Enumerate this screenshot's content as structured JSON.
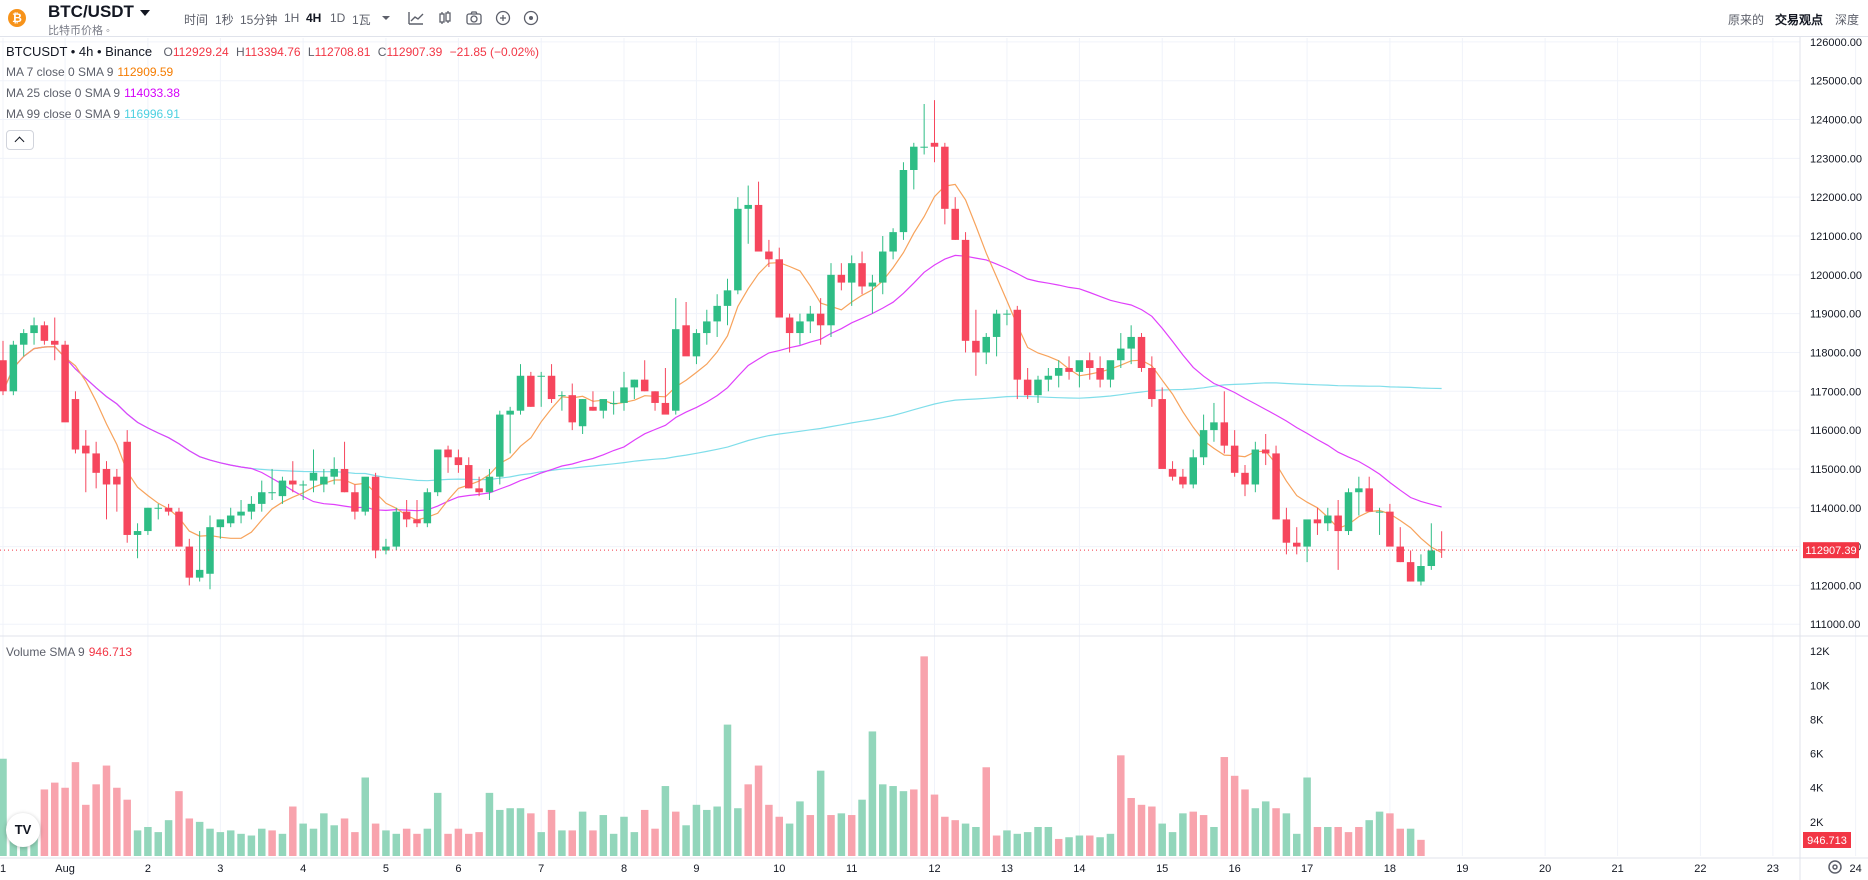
{
  "header": {
    "coin_icon": "bitcoin-icon",
    "symbol": "BTC/USDT",
    "subtitle": "比特币价格 ◦",
    "timeframes": [
      "时间",
      "1秒",
      "15分钟",
      "1H",
      "4H",
      "1D",
      "1瓦"
    ],
    "active_timeframe": "4H",
    "tool_icons": [
      "chevron-down-icon",
      "indicator-chart-icon",
      "candle-type-icon",
      "camera-icon",
      "add-circle-icon",
      "replay-icon"
    ],
    "right_tabs": [
      "原来的",
      "交易观点",
      "深度"
    ]
  },
  "legend": {
    "symbol": "BTCUSDT • 4h • Binance",
    "o_label": "O",
    "o": "112929.24",
    "h_label": "H",
    "h": "113394.76",
    "l_label": "L",
    "l": "112708.81",
    "c_label": "C",
    "c": "112907.39",
    "change": "−21.85 (−0.02%)",
    "ma7_label": "MA 7 close 0 SMA 9",
    "ma7_value": "112909.59",
    "ma25_label": "MA 25 close 0 SMA 9",
    "ma25_value": "114033.38",
    "ma99_label": "MA 99 close 0 SMA 9",
    "ma99_value": "116996.91",
    "volume_label": "Volume SMA 9",
    "volume_value": "946.713"
  },
  "colors": {
    "up": "#26a69a",
    "down": "#f23645",
    "candle_up": "#2ebd85",
    "candle_down": "#f6465d",
    "ma7": "#f7a35c",
    "ma25": "#e040fb",
    "ma99": "#80deea"
  },
  "chart_data": [
    {
      "type": "candlestick",
      "title": "BTCUSDT • 4h • Binance",
      "x_tick_labels": [
        "1",
        "Aug",
        "2",
        "3",
        "4",
        "5",
        "6",
        "7",
        "8",
        "9",
        "10",
        "11",
        "12",
        "13",
        "14",
        "15",
        "16",
        "17",
        "18",
        "19",
        "20",
        "21",
        "22",
        "23",
        "24"
      ],
      "y_tick_labels": [
        "111000.00",
        "112000.00",
        "113000.00",
        "114000.00",
        "115000.00",
        "116000.00",
        "117000.00",
        "118000.00",
        "119000.00",
        "120000.00",
        "121000.00",
        "122000.00",
        "123000.00",
        "124000.00",
        "125000.00",
        "126000.00"
      ],
      "ylim": [
        110800,
        126100
      ],
      "last_price_label": "112907.39",
      "last_price": 112907.39,
      "grid": true,
      "candles_ohlc": [
        [
          117800,
          118300,
          116900,
          117000
        ],
        [
          117000,
          118300,
          116900,
          118200
        ],
        [
          118200,
          118600,
          117900,
          118500
        ],
        [
          118500,
          118900,
          118200,
          118700
        ],
        [
          118700,
          118800,
          118200,
          118300
        ],
        [
          118300,
          118900,
          117800,
          118200
        ],
        [
          118200,
          118300,
          116800,
          116200
        ],
        [
          116800,
          117000,
          115400,
          115500
        ],
        [
          115600,
          116000,
          114400,
          115400
        ],
        [
          115400,
          115700,
          114500,
          114900
        ],
        [
          115000,
          115200,
          113700,
          114600
        ],
        [
          114800,
          115000,
          113900,
          114600
        ],
        [
          115700,
          116000,
          113100,
          113300
        ],
        [
          113300,
          113600,
          112700,
          113400
        ],
        [
          113400,
          114000,
          113300,
          114000
        ],
        [
          114000,
          114100,
          113700,
          114000
        ],
        [
          114000,
          114100,
          113800,
          113900
        ],
        [
          113900,
          114000,
          113000,
          113000
        ],
        [
          113000,
          113200,
          112000,
          112200
        ],
        [
          112200,
          113400,
          112100,
          112400
        ],
        [
          112300,
          113800,
          111900,
          113500
        ],
        [
          113500,
          113700,
          113200,
          113700
        ],
        [
          113600,
          114000,
          113500,
          113800
        ],
        [
          113800,
          114200,
          113600,
          113900
        ],
        [
          113900,
          114300,
          113700,
          114100
        ],
        [
          114100,
          114700,
          113900,
          114400
        ],
        [
          114400,
          115000,
          114200,
          114400
        ],
        [
          114300,
          114800,
          114100,
          114700
        ],
        [
          114700,
          115200,
          114400,
          114600
        ],
        [
          114600,
          114700,
          114200,
          114600
        ],
        [
          114700,
          115500,
          114400,
          114900
        ],
        [
          114600,
          115000,
          114400,
          114800
        ],
        [
          114800,
          115300,
          114600,
          115000
        ],
        [
          115000,
          115700,
          114400,
          114400
        ],
        [
          114400,
          114600,
          113700,
          113900
        ],
        [
          113900,
          114700,
          113800,
          114800
        ],
        [
          114800,
          114900,
          112700,
          112900
        ],
        [
          112900,
          113200,
          112800,
          113000
        ],
        [
          113000,
          114000,
          112900,
          113900
        ],
        [
          113900,
          114200,
          113500,
          113700
        ],
        [
          113700,
          114200,
          113500,
          113600
        ],
        [
          113600,
          114500,
          113500,
          114400
        ],
        [
          114400,
          115500,
          114300,
          115500
        ],
        [
          115500,
          115600,
          114900,
          115300
        ],
        [
          115300,
          115500,
          114900,
          115100
        ],
        [
          115100,
          115300,
          114500,
          114500
        ],
        [
          114500,
          114800,
          114300,
          114400
        ],
        [
          114400,
          115000,
          114200,
          114800
        ],
        [
          114800,
          116500,
          114600,
          116400
        ],
        [
          116400,
          116600,
          115400,
          116500
        ],
        [
          116500,
          117700,
          116400,
          117400
        ],
        [
          117400,
          117500,
          116600,
          116600
        ],
        [
          117400,
          117500,
          116600,
          117400
        ],
        [
          117400,
          117700,
          116700,
          116800
        ],
        [
          116900,
          117000,
          116500,
          116900
        ],
        [
          116900,
          117200,
          116000,
          116200
        ],
        [
          116100,
          116800,
          115900,
          116800
        ],
        [
          116600,
          117000,
          116500,
          116500
        ],
        [
          116500,
          116700,
          116300,
          116800
        ],
        [
          116700,
          117000,
          116400,
          116700
        ],
        [
          116700,
          117500,
          116500,
          117100
        ],
        [
          117100,
          117300,
          116800,
          117300
        ],
        [
          117300,
          117800,
          117000,
          117000
        ],
        [
          117000,
          117000,
          116500,
          116700
        ],
        [
          116700,
          117600,
          116500,
          116400
        ],
        [
          116500,
          119400,
          116400,
          118600
        ],
        [
          118700,
          119300,
          118000,
          117900
        ],
        [
          117900,
          118600,
          117700,
          118500
        ],
        [
          118500,
          119100,
          118200,
          118800
        ],
        [
          118800,
          119500,
          118400,
          119200
        ],
        [
          119200,
          119900,
          118700,
          119600
        ],
        [
          119600,
          122000,
          119500,
          121700
        ],
        [
          121700,
          122300,
          120800,
          121800
        ],
        [
          121800,
          122400,
          121000,
          120600
        ],
        [
          120600,
          120900,
          120200,
          120400
        ],
        [
          120400,
          120700,
          119000,
          118900
        ],
        [
          118900,
          119000,
          118000,
          118500
        ],
        [
          118500,
          119000,
          118200,
          118800
        ],
        [
          118800,
          119200,
          118500,
          119000
        ],
        [
          119000,
          119400,
          118200,
          118700
        ],
        [
          118700,
          120300,
          118400,
          120000
        ],
        [
          120000,
          120300,
          119600,
          119800
        ],
        [
          119800,
          120500,
          119200,
          120300
        ],
        [
          120300,
          120600,
          119500,
          119700
        ],
        [
          119700,
          120000,
          119000,
          119800
        ],
        [
          119800,
          121000,
          119500,
          120600
        ],
        [
          120600,
          121200,
          120400,
          121100
        ],
        [
          121100,
          122900,
          120900,
          122700
        ],
        [
          122700,
          123400,
          122200,
          123300
        ],
        [
          123300,
          124400,
          123100,
          123300
        ],
        [
          123400,
          124500,
          122900,
          123300
        ],
        [
          123300,
          123400,
          121300,
          121700
        ],
        [
          121700,
          122000,
          120900,
          120900
        ],
        [
          120900,
          121100,
          118000,
          118300
        ],
        [
          118300,
          119100,
          117400,
          118000
        ],
        [
          118000,
          118500,
          117700,
          118400
        ],
        [
          118400,
          119100,
          117900,
          119000
        ],
        [
          119000,
          119100,
          118700,
          119000
        ],
        [
          119100,
          119200,
          116800,
          117300
        ],
        [
          117300,
          117600,
          116800,
          116900
        ],
        [
          116900,
          117400,
          116700,
          117300
        ],
        [
          117300,
          117600,
          117000,
          117400
        ],
        [
          117400,
          117800,
          117100,
          117600
        ],
        [
          117600,
          117900,
          117300,
          117500
        ],
        [
          117500,
          117700,
          117100,
          117800
        ],
        [
          117800,
          118000,
          117300,
          117600
        ],
        [
          117600,
          117900,
          117100,
          117300
        ],
        [
          117300,
          117700,
          117100,
          117800
        ],
        [
          117800,
          118500,
          117600,
          118100
        ],
        [
          118100,
          118700,
          117700,
          118400
        ],
        [
          118400,
          118500,
          117500,
          117600
        ],
        [
          117600,
          117900,
          116600,
          116800
        ],
        [
          116800,
          117100,
          116000,
          115000
        ],
        [
          115000,
          115200,
          114700,
          114800
        ],
        [
          114800,
          115000,
          114500,
          114600
        ],
        [
          114600,
          115500,
          114500,
          115300
        ],
        [
          115300,
          116400,
          115100,
          116000
        ],
        [
          116000,
          116700,
          115700,
          116200
        ],
        [
          116200,
          117000,
          115400,
          115600
        ],
        [
          115600,
          116000,
          114800,
          114900
        ],
        [
          114900,
          115100,
          114300,
          114600
        ],
        [
          114600,
          115700,
          114400,
          115500
        ],
        [
          115500,
          115900,
          115100,
          115400
        ],
        [
          115400,
          115600,
          113700,
          113700
        ],
        [
          113700,
          114000,
          112800,
          113100
        ],
        [
          113100,
          113500,
          112800,
          113000
        ],
        [
          113000,
          113400,
          112600,
          113700
        ],
        [
          113700,
          114000,
          113300,
          113600
        ],
        [
          113600,
          114000,
          113400,
          113800
        ],
        [
          113800,
          114200,
          112400,
          113400
        ],
        [
          113400,
          114500,
          113300,
          114400
        ],
        [
          114400,
          114800,
          113800,
          114500
        ],
        [
          114500,
          114800,
          113900,
          113900
        ],
        [
          113900,
          114000,
          113300,
          113900
        ],
        [
          113900,
          114100,
          113100,
          113000
        ],
        [
          113000,
          113500,
          112600,
          112600
        ],
        [
          112600,
          112900,
          112100,
          112100
        ],
        [
          112100,
          112800,
          112000,
          112500
        ],
        [
          112500,
          113600,
          112400,
          112900
        ],
        [
          112929.24,
          113394.76,
          112708.81,
          112907.39
        ]
      ]
    },
    {
      "type": "bar",
      "title": "Volume SMA 9",
      "y_tick_labels": [
        "2K",
        "4K",
        "6K",
        "8K",
        "10K",
        "12K"
      ],
      "ylim": [
        0,
        12600
      ],
      "last_value_label": "946.713",
      "volume_values": [
        5700,
        1800,
        1100,
        1300,
        3900,
        4300,
        4000,
        5500,
        3000,
        4200,
        5300,
        4000,
        3300,
        1500,
        1700,
        1400,
        2100,
        3800,
        2200,
        2000,
        1600,
        1400,
        1500,
        1300,
        1200,
        1600,
        1500,
        1300,
        2900,
        1900,
        1600,
        2500,
        1800,
        2200,
        1400,
        4600,
        1900,
        1500,
        1300,
        1600,
        1300,
        1600,
        3700,
        1300,
        1600,
        1300,
        1400,
        3700,
        2700,
        2800,
        2800,
        2500,
        1400,
        2700,
        1500,
        1500,
        2600,
        1500,
        2400,
        1300,
        2300,
        1400,
        2700,
        1600,
        4100,
        2600,
        1800,
        3000,
        2700,
        2900,
        7700,
        2800,
        4200,
        5300,
        3000,
        2300,
        1900,
        3200,
        2400,
        5000,
        2400,
        2500,
        2400,
        3300,
        7300,
        4200,
        4100,
        3800,
        3900,
        11700,
        3600,
        2300,
        2100,
        1900,
        1700,
        5200,
        1200,
        1500,
        1300,
        1400,
        1700,
        1700,
        1000,
        1100,
        1200,
        1200,
        1100,
        1300,
        5900,
        3400,
        3000,
        2900,
        1900,
        1400,
        2500,
        2600,
        2400,
        1700,
        5800,
        4700,
        3900,
        2800,
        3200,
        2800,
        2500,
        1300,
        4600,
        1700,
        1700,
        1700,
        1400,
        1700,
        2100,
        2600,
        2500,
        1600,
        1600,
        946.713
      ],
      "volume_up": [
        true,
        true,
        true,
        true,
        false,
        false,
        false,
        false,
        false,
        false,
        false,
        false,
        false,
        true,
        true,
        true,
        true,
        false,
        false,
        true,
        true,
        true,
        true,
        true,
        true,
        true,
        false,
        true,
        false,
        true,
        true,
        true,
        true,
        false,
        false,
        true,
        false,
        true,
        true,
        false,
        false,
        true,
        true,
        false,
        false,
        false,
        false,
        true,
        true,
        true,
        true,
        false,
        true,
        false,
        true,
        false,
        true,
        false,
        true,
        true,
        true,
        true,
        false,
        false,
        true,
        false,
        true,
        true,
        true,
        true,
        true,
        true,
        false,
        false,
        false,
        false,
        true,
        true,
        false,
        true,
        false,
        true,
        false,
        true,
        true,
        true,
        true,
        true,
        false,
        false,
        false,
        false,
        false,
        true,
        true,
        false,
        false,
        true,
        true,
        true,
        true,
        true,
        false,
        true,
        true,
        false,
        true,
        true,
        false,
        false,
        false,
        false,
        true,
        true,
        true,
        false,
        false,
        true,
        false,
        false,
        false,
        true,
        true,
        false,
        true,
        true,
        true,
        false,
        true,
        false,
        false,
        false,
        true,
        true,
        false,
        false,
        true,
        false
      ]
    }
  ]
}
